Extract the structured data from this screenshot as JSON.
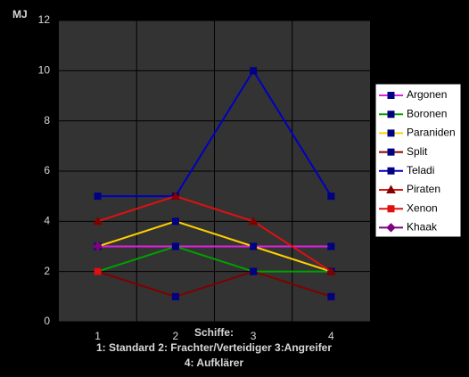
{
  "chart_data": {
    "type": "line",
    "title": "MJ",
    "xlabel": [
      "Schiffe:",
      "1: Standard 2: Frachter/Verteidiger 3:Angreifer",
      "4: Aufklärer"
    ],
    "categories": [
      "1",
      "2",
      "3",
      "4"
    ],
    "ylim": [
      0,
      12
    ],
    "yticks": [
      0,
      2,
      4,
      6,
      8,
      10,
      12
    ],
    "grid": true,
    "series": [
      {
        "name": "Argonen",
        "color": "#e020e0",
        "marker": "square",
        "marker_color": "#000080",
        "values": [
          3,
          3,
          3,
          3
        ]
      },
      {
        "name": "Boronen",
        "color": "#00a000",
        "marker": "square",
        "marker_color": "#000080",
        "values": [
          2,
          3,
          2,
          2
        ]
      },
      {
        "name": "Paraniden",
        "color": "#ffd000",
        "marker": "square",
        "marker_color": "#000080",
        "values": [
          3,
          4,
          3,
          2
        ]
      },
      {
        "name": "Split",
        "color": "#800000",
        "marker": "square",
        "marker_color": "#000080",
        "values": [
          2,
          1,
          2,
          1
        ]
      },
      {
        "name": "Teladi",
        "color": "#0000c0",
        "marker": "square",
        "marker_color": "#000080",
        "values": [
          5,
          5,
          10,
          5
        ]
      },
      {
        "name": "Piraten",
        "color": "#e01010",
        "marker": "triangle",
        "marker_color": "#800000",
        "values": [
          4,
          5,
          4,
          2
        ]
      },
      {
        "name": "Xenon",
        "color": "#e01010",
        "marker": "square",
        "marker_color": "#e01010",
        "values": [
          2,
          null,
          null,
          null
        ]
      },
      {
        "name": "Khaak",
        "color": "#800080",
        "marker": "diamond",
        "marker_color": "#800080",
        "values": [
          3,
          null,
          null,
          null
        ]
      }
    ]
  }
}
